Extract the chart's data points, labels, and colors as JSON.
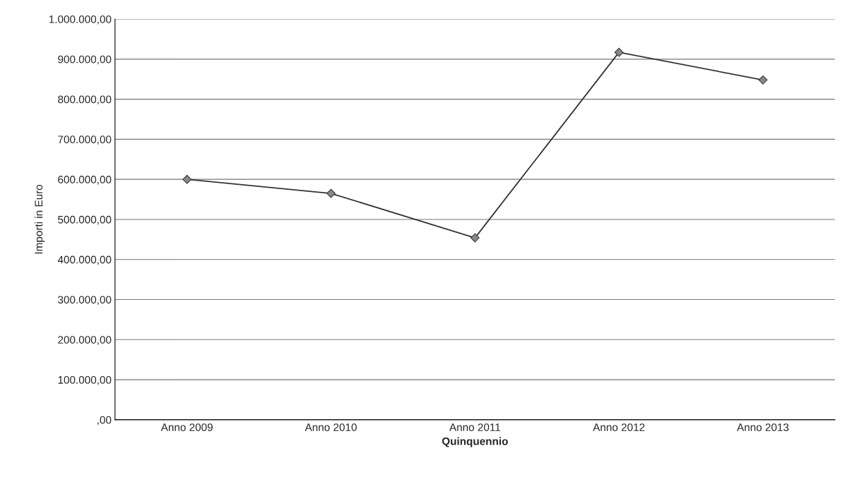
{
  "chart_data": {
    "type": "line",
    "xlabel": "Quinquennio",
    "ylabel": "Importi in Euro",
    "categories": [
      "Anno 2009",
      "Anno 2010",
      "Anno 2011",
      "Anno 2012",
      "Anno 2013"
    ],
    "series": [
      {
        "color": "#333333",
        "values": [
          600000,
          565000,
          454000,
          917000,
          848000
        ]
      }
    ],
    "marker": "diamond",
    "line_style": "solid",
    "grid": "y",
    "ylim": [
      0,
      1000000
    ],
    "yticks": [
      {
        "value": 0,
        "label": ",00"
      },
      {
        "value": 100000,
        "label": "100.000,00"
      },
      {
        "value": 200000,
        "label": "200.000,00"
      },
      {
        "value": 300000,
        "label": "300.000,00"
      },
      {
        "value": 400000,
        "label": "400.000,00"
      },
      {
        "value": 500000,
        "label": "500.000,00"
      },
      {
        "value": 600000,
        "label": "600.000,00"
      },
      {
        "value": 700000,
        "label": "700.000,00"
      },
      {
        "value": 800000,
        "label": "800.000,00"
      },
      {
        "value": 900000,
        "label": "900.000,00"
      },
      {
        "value": 1000000,
        "label": "1.000.000,00"
      }
    ]
  }
}
